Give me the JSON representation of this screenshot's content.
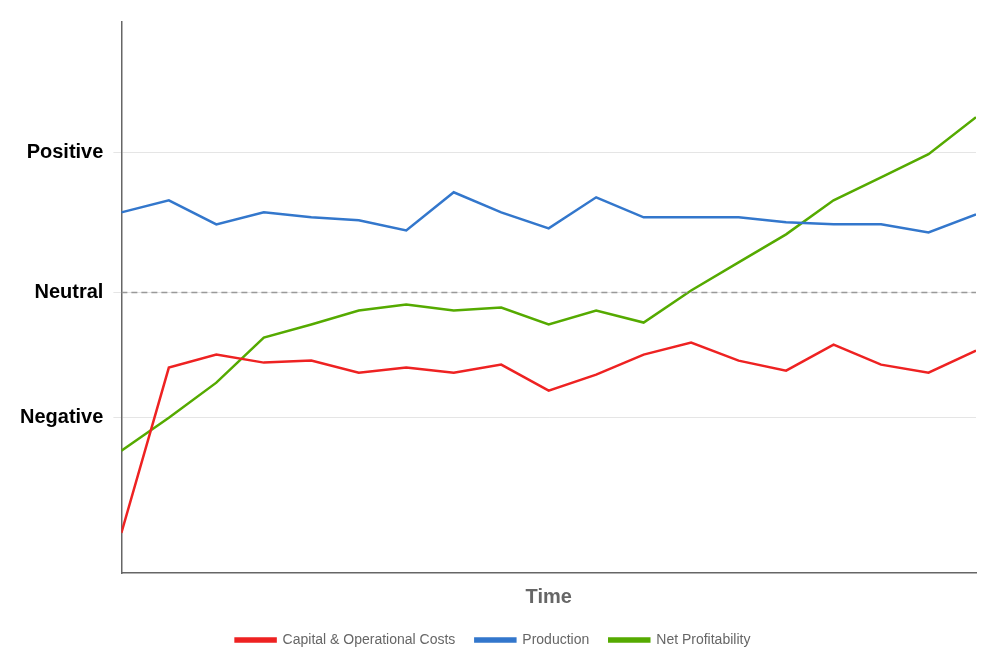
{
  "chart_data": {
    "type": "line",
    "xlabel": "Time",
    "x": [
      0,
      1,
      2,
      3,
      4,
      5,
      6,
      7,
      8,
      9,
      10,
      11,
      12,
      13,
      14,
      15,
      16,
      17,
      18
    ],
    "xlim": [
      0,
      18
    ],
    "xticks": [],
    "ylim": [
      -1.0,
      4.5
    ],
    "yticks": [
      {
        "value": 3.2,
        "label": "Positive"
      },
      {
        "value": 1.8,
        "label": "Neutral"
      },
      {
        "value": 0.55,
        "label": "Negative"
      }
    ],
    "grid": true,
    "legend": "bottom",
    "tick_labels": "y",
    "reference_line": {
      "y": 1.8,
      "line_style": "dashed"
    },
    "series": [
      {
        "name": "Capital & Operational Costs",
        "color": "#ee2222",
        "values": [
          -0.6,
          1.05,
          1.18,
          1.1,
          1.12,
          1.0,
          1.05,
          1.0,
          1.08,
          0.82,
          0.98,
          1.18,
          1.3,
          1.12,
          1.02,
          1.28,
          1.08,
          1.0,
          1.22
        ]
      },
      {
        "name": "Production",
        "color": "#3377cc",
        "values": [
          2.6,
          2.72,
          2.48,
          2.6,
          2.55,
          2.52,
          2.42,
          2.8,
          2.6,
          2.44,
          2.75,
          2.55,
          2.55,
          2.55,
          2.5,
          2.48,
          2.48,
          2.4,
          2.58
        ]
      },
      {
        "name": "Net Profitability",
        "color": "#55aa00",
        "values": [
          0.22,
          0.55,
          0.9,
          1.35,
          1.48,
          1.62,
          1.68,
          1.62,
          1.65,
          1.48,
          1.62,
          1.5,
          1.82,
          2.1,
          2.38,
          2.72,
          2.95,
          3.18,
          3.55
        ]
      }
    ]
  }
}
